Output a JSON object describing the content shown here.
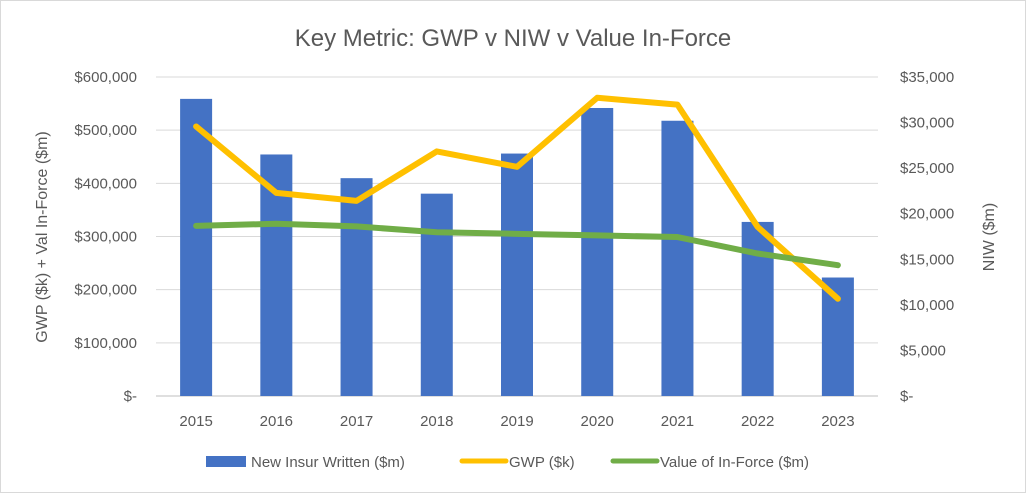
{
  "chart_data": {
    "type": "bar+line",
    "title": "Key Metric: GWP v NIW v Value In-Force",
    "categories": [
      "2015",
      "2016",
      "2017",
      "2018",
      "2019",
      "2020",
      "2021",
      "2022",
      "2023"
    ],
    "left_axis": {
      "title": "GWP ($k) + Val In-Force ($m)",
      "ylim": [
        0,
        600000
      ],
      "ticks": [
        0,
        100000,
        200000,
        300000,
        400000,
        500000,
        600000
      ],
      "tick_labels": [
        "$-",
        "$100,000",
        "$200,000",
        "$300,000",
        "$400,000",
        "$500,000",
        "$600,000"
      ]
    },
    "right_axis": {
      "title": "NIW ($m)",
      "ylim": [
        0,
        35000
      ],
      "ticks": [
        0,
        5000,
        10000,
        15000,
        20000,
        25000,
        30000,
        35000
      ],
      "tick_labels": [
        "$-",
        "$5,000",
        "$10,000",
        "$15,000",
        "$20,000",
        "$25,000",
        "$30,000",
        "$35,000"
      ]
    },
    "series": [
      {
        "name": "New Insur Written ($m)",
        "kind": "bar",
        "axis": "right",
        "color": "#4472c4",
        "values": [
          32600,
          26500,
          23900,
          22200,
          26600,
          31600,
          30200,
          19100,
          13000
        ]
      },
      {
        "name": "GWP ($k)",
        "kind": "line",
        "axis": "left",
        "color": "#ffc000",
        "values": [
          507000,
          382000,
          367000,
          460000,
          431000,
          561000,
          548000,
          318000,
          183000
        ]
      },
      {
        "name": "Value of In-Force ($m)",
        "kind": "line",
        "axis": "left",
        "color": "#70ad47",
        "values": [
          320000,
          324000,
          319000,
          308000,
          305000,
          302000,
          299000,
          268000,
          246000
        ]
      }
    ],
    "grid": true,
    "legend": "bottom"
  }
}
